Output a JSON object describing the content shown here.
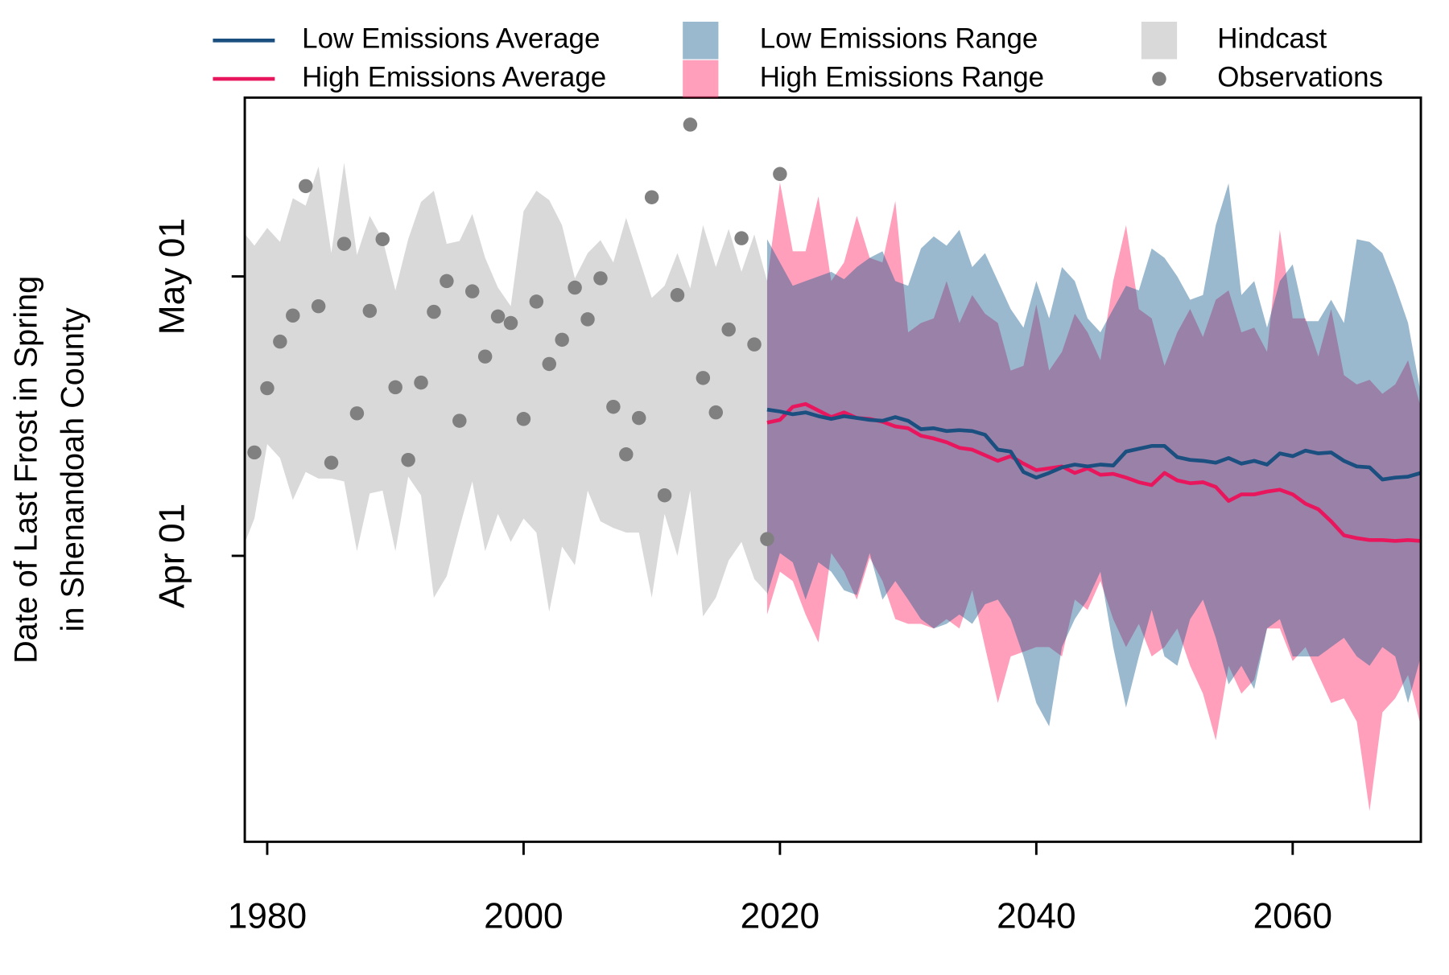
{
  "chart_data": {
    "type": "line",
    "ylabel": [
      "Date of Last Frost in Spring",
      "in Shenandoah County"
    ],
    "xlim": [
      1978.25,
      2070
    ],
    "ylim": [
      60.3,
      140.2
    ],
    "xticks": [
      1980,
      2000,
      2020,
      2040,
      2060
    ],
    "yticks": [
      {
        "value": 91,
        "label": "Apr 01"
      },
      {
        "value": 121,
        "label": "May 01"
      }
    ],
    "series": [
      {
        "name": "Low Emissions Average",
        "kind": "line",
        "color": "#1a4f80",
        "x": [
          2019,
          2020,
          2021,
          2022,
          2023,
          2024,
          2025,
          2026,
          2027,
          2028,
          2029,
          2030,
          2031,
          2032,
          2033,
          2034,
          2035,
          2036,
          2037,
          2038,
          2039,
          2040,
          2041,
          2042,
          2043,
          2044,
          2045,
          2046,
          2047,
          2048,
          2049,
          2050,
          2051,
          2052,
          2053,
          2054,
          2055,
          2056,
          2057,
          2058,
          2059,
          2060,
          2061,
          2062,
          2063,
          2064,
          2065,
          2066,
          2067,
          2068,
          2069,
          2070
        ],
        "values": [
          106.7,
          106.5,
          106.2,
          106.4,
          106.0,
          105.7,
          106.0,
          105.8,
          105.6,
          105.5,
          105.9,
          105.5,
          104.6,
          104.7,
          104.4,
          104.5,
          104.4,
          104.0,
          102.4,
          102.2,
          100.0,
          99.4,
          99.9,
          100.5,
          100.8,
          100.6,
          100.8,
          100.7,
          102.2,
          102.5,
          102.8,
          102.8,
          101.6,
          101.3,
          101.2,
          101.0,
          101.5,
          100.9,
          101.2,
          100.8,
          102.0,
          101.7,
          102.3,
          102.0,
          102.1,
          101.2,
          100.6,
          100.5,
          99.2,
          99.4,
          99.5,
          99.9
        ]
      },
      {
        "name": "High Emissions Average",
        "kind": "line",
        "color": "#e8175d",
        "x": [
          2019,
          2020,
          2021,
          2022,
          2023,
          2024,
          2025,
          2026,
          2027,
          2028,
          2029,
          2030,
          2031,
          2032,
          2033,
          2034,
          2035,
          2036,
          2037,
          2038,
          2039,
          2040,
          2041,
          2042,
          2043,
          2044,
          2045,
          2046,
          2047,
          2048,
          2049,
          2050,
          2051,
          2052,
          2053,
          2054,
          2055,
          2056,
          2057,
          2058,
          2059,
          2060,
          2061,
          2062,
          2063,
          2064,
          2065,
          2066,
          2067,
          2068,
          2069,
          2070
        ],
        "values": [
          105.3,
          105.6,
          107.0,
          107.3,
          106.6,
          105.9,
          106.4,
          105.8,
          105.7,
          105.4,
          104.9,
          104.7,
          103.9,
          103.6,
          103.2,
          102.6,
          102.4,
          101.8,
          101.2,
          101.7,
          100.9,
          100.2,
          100.4,
          100.6,
          99.9,
          100.4,
          99.7,
          99.8,
          99.4,
          98.9,
          98.6,
          99.9,
          99.1,
          98.8,
          98.9,
          98.4,
          96.9,
          97.6,
          97.6,
          97.9,
          98.1,
          97.6,
          96.6,
          96.0,
          94.7,
          93.2,
          92.9,
          92.7,
          92.7,
          92.6,
          92.7,
          92.6
        ]
      },
      {
        "name": "Low Emissions Range",
        "kind": "band",
        "color": "#0e588c6b",
        "x": [
          2019,
          2020,
          2021,
          2022,
          2023,
          2024,
          2025,
          2026,
          2027,
          2028,
          2029,
          2030,
          2031,
          2032,
          2033,
          2034,
          2035,
          2036,
          2037,
          2038,
          2039,
          2040,
          2041,
          2042,
          2043,
          2044,
          2045,
          2046,
          2047,
          2048,
          2049,
          2050,
          2051,
          2052,
          2053,
          2054,
          2055,
          2056,
          2057,
          2058,
          2059,
          2060,
          2061,
          2062,
          2063,
          2064,
          2065,
          2066,
          2067,
          2068,
          2069,
          2070
        ],
        "upper": [
          125,
          122.5,
          120,
          120.5,
          121,
          121.5,
          120.7,
          122,
          123,
          123.7,
          120.5,
          120,
          124,
          125.3,
          124.3,
          126,
          122,
          123.5,
          120.5,
          117.5,
          115.5,
          120.5,
          116.5,
          122,
          120.5,
          116.5,
          115,
          117.5,
          120,
          119.5,
          124,
          123,
          121,
          118.5,
          119,
          126.5,
          131,
          119,
          120.5,
          115.5,
          120.5,
          122.3,
          116.2,
          116.2,
          118.5,
          116,
          125,
          124.7,
          123.5,
          120,
          116,
          108.4
        ],
        "lower": [
          86.8,
          91.3,
          90.3,
          86.3,
          90.3,
          89.3,
          87.3,
          86.8,
          91.3,
          86.3,
          88.3,
          86.3,
          84.2,
          83.2,
          83.7,
          84.7,
          83.7,
          85.8,
          86.3,
          84.2,
          80.2,
          75.2,
          72.7,
          81.2,
          84.2,
          86.3,
          89.3,
          81.2,
          74.7,
          80.2,
          85.2,
          80.2,
          79.2,
          84.2,
          86.3,
          82.2,
          77.2,
          79.2,
          76.7,
          83.2,
          84.2,
          80.2,
          80.2,
          80.2,
          81.2,
          82.2,
          80.2,
          79.2,
          81.2,
          80.2,
          75.2,
          80.2
        ]
      },
      {
        "name": "High Emissions Range",
        "kind": "band",
        "color": "#ff327078",
        "x": [
          2019,
          2020,
          2021,
          2022,
          2023,
          2024,
          2025,
          2026,
          2027,
          2028,
          2029,
          2030,
          2031,
          2032,
          2033,
          2034,
          2035,
          2036,
          2037,
          2038,
          2039,
          2040,
          2041,
          2042,
          2043,
          2044,
          2045,
          2046,
          2047,
          2048,
          2049,
          2050,
          2051,
          2052,
          2053,
          2054,
          2055,
          2056,
          2057,
          2058,
          2059,
          2060,
          2061,
          2062,
          2063,
          2064,
          2065,
          2066,
          2067,
          2068,
          2069,
          2070
        ],
        "upper": [
          120.5,
          131.1,
          123.7,
          123.7,
          129.6,
          120.5,
          122.5,
          127.5,
          123,
          122.5,
          129.1,
          115,
          116,
          116.5,
          120.5,
          116,
          119,
          117,
          116,
          110.9,
          111.4,
          118,
          110.9,
          112.9,
          117,
          115,
          112,
          120.5,
          126.5,
          117.5,
          116.5,
          111.4,
          115,
          117.5,
          114.5,
          118.5,
          119.5,
          115,
          115.5,
          112.9,
          126,
          116.5,
          116.5,
          112.4,
          117.5,
          110.4,
          109.4,
          109.9,
          108.4,
          109.4,
          112,
          106.9
        ],
        "lower": [
          84.7,
          89.3,
          88.3,
          84.7,
          81.7,
          91.3,
          89.3,
          86.3,
          90.8,
          88.3,
          84.2,
          83.7,
          83.7,
          83.2,
          84.2,
          83.2,
          87.3,
          81.2,
          75.2,
          80.2,
          80.7,
          81.2,
          81.2,
          80.2,
          86.3,
          85.2,
          88.3,
          84.2,
          81.2,
          83.7,
          80.2,
          81.2,
          83.2,
          79.2,
          76.2,
          71.2,
          79.2,
          76.2,
          77.7,
          83.2,
          83.2,
          79.7,
          81.2,
          78.2,
          75.2,
          75.7,
          73.2,
          63.6,
          74.2,
          75.7,
          78.2,
          72.7
        ]
      },
      {
        "name": "Hindcast",
        "kind": "band",
        "color": "#d9d9d9",
        "x": [
          1978,
          1979,
          1980,
          1981,
          1982,
          1983,
          1984,
          1985,
          1986,
          1987,
          1988,
          1989,
          1990,
          1991,
          1992,
          1993,
          1994,
          1995,
          1996,
          1997,
          1998,
          1999,
          2000,
          2001,
          2002,
          2003,
          2004,
          2005,
          2006,
          2007,
          2008,
          2009,
          2010,
          2011,
          2012,
          2013,
          2014,
          2015,
          2016,
          2017,
          2018,
          2019
        ],
        "upper": [
          126,
          124.3,
          126.2,
          124.7,
          129.4,
          128.6,
          132.8,
          123.5,
          133.2,
          123.3,
          127.5,
          125,
          119.5,
          125,
          129,
          130.2,
          124.5,
          124.8,
          127.7,
          123,
          119.8,
          117.8,
          128,
          130.2,
          129.2,
          126.5,
          120.8,
          123.5,
          124.9,
          122.5,
          127.3,
          123,
          118.7,
          120,
          123.5,
          119.7,
          126.5,
          122,
          126.1,
          121.5,
          125.5,
          120.5
        ],
        "lower": [
          91.5,
          95,
          103,
          101.5,
          97,
          100,
          99.3,
          99.3,
          99,
          91.5,
          97.7,
          98,
          91.5,
          99.5,
          97.5,
          86.5,
          88.8,
          94,
          99,
          91.5,
          95.5,
          92.5,
          95,
          93.5,
          85,
          92,
          90,
          98,
          94.7,
          94,
          93.5,
          93.5,
          86.5,
          95.5,
          91,
          98,
          84.5,
          86.5,
          90.5,
          92.5,
          88.5,
          87
        ]
      },
      {
        "name": "Observations",
        "kind": "points",
        "color": "#808080",
        "x": [
          1979,
          1980,
          1981,
          1982,
          1983,
          1984,
          1985,
          1986,
          1987,
          1988,
          1989,
          1990,
          1991,
          1992,
          1993,
          1994,
          1995,
          1996,
          1997,
          1998,
          1999,
          2000,
          2001,
          2002,
          2003,
          2004,
          2005,
          2006,
          2007,
          2008,
          2009,
          2010,
          2011,
          2012,
          2013,
          2014,
          2015,
          2016,
          2017,
          2018,
          2019,
          2020
        ],
        "values": [
          102.1,
          109,
          114,
          116.8,
          130.7,
          117.8,
          101,
          124.5,
          106.3,
          117.3,
          125,
          109.1,
          101.3,
          109.6,
          117.2,
          120.5,
          105.5,
          119.4,
          112.4,
          116.7,
          116,
          105.7,
          118.3,
          111.6,
          114.2,
          119.8,
          116.4,
          120.8,
          107,
          101.9,
          105.8,
          129.5,
          97.5,
          119,
          137.3,
          110.1,
          106.4,
          115.3,
          125.1,
          113.7,
          92.8,
          132
        ]
      }
    ]
  }
}
